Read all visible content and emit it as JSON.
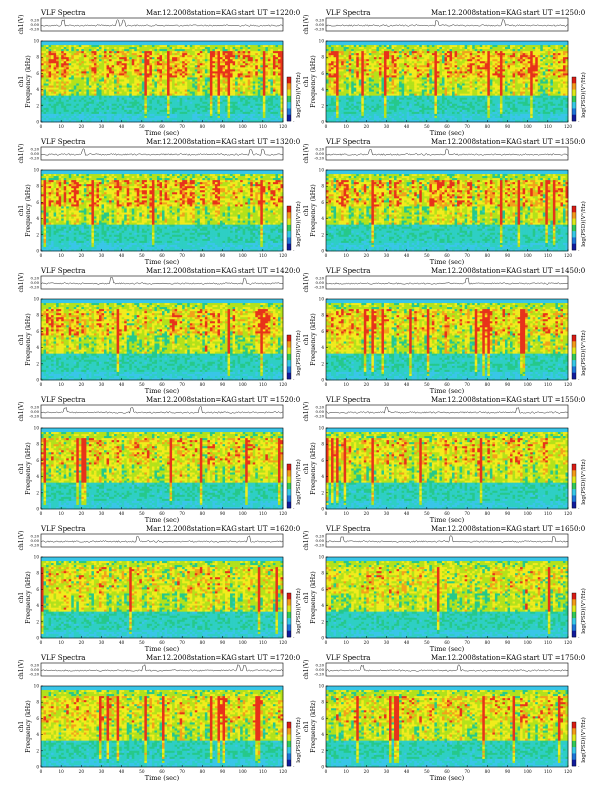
{
  "colors": {
    "background": "#0a9fe0",
    "low": "#39c6e8",
    "mid_low": "#26c98a",
    "mid": "#b4e21a",
    "mid_high": "#f2ec1c",
    "high": "#e8321a",
    "colorbar_stops": [
      "#111b9c",
      "#1e74d8",
      "#36c8e6",
      "#31c95a",
      "#dfe81a",
      "#f29a1a",
      "#d91b14"
    ]
  },
  "chart_data": [
    {
      "type": "heatmap",
      "title_left": "VLF Spectra",
      "date": "Mar.12.2008",
      "station": "station=KAG",
      "start": "start  UT  =1220:0",
      "xlabel": "Time  (sec)",
      "ylabel": "Frequency  (kHz)",
      "ch_label": "ch1",
      "ch_top_label": "ch1(V)",
      "colorbar_label": "log(PSD)(V²/Hz)",
      "xlim": [
        0,
        120
      ],
      "ylim": [
        0,
        10
      ],
      "x_ticks": [
        "0",
        "10",
        "20",
        "30",
        "40",
        "50",
        "60",
        "70",
        "80",
        "90",
        "100",
        "110",
        "120"
      ],
      "y_ticks": [
        "0",
        "2",
        "4",
        "6",
        "8",
        "10"
      ],
      "top_y_ticks": [
        "0.20",
        "0.00",
        "-0.20"
      ],
      "colorbar_ticks": [
        "-",
        "",
        "",
        "",
        "",
        "",
        ""
      ],
      "band_strength": 0.85,
      "spikes": [
        11,
        38,
        41
      ]
    },
    {
      "type": "heatmap",
      "title_left": "VLF Spectra",
      "date": "Mar.12.2008",
      "station": "station=KAG",
      "start": "start  UT  =1250:0",
      "xlabel": "Time  (sec)",
      "ylabel": "Frequency  (kHz)",
      "ch_label": "ch1",
      "ch_top_label": "ch1(V)",
      "colorbar_label": "log(PSD)(V²/Hz)",
      "xlim": [
        0,
        120
      ],
      "ylim": [
        0,
        10
      ],
      "x_ticks": [
        "0",
        "10",
        "20",
        "30",
        "40",
        "50",
        "60",
        "70",
        "80",
        "90",
        "100",
        "110",
        "120"
      ],
      "y_ticks": [
        "0",
        "2",
        "4",
        "6",
        "8",
        "10"
      ],
      "top_y_ticks": [
        "0.20",
        "0.00",
        "-0.20"
      ],
      "colorbar_ticks": [
        "-",
        "",
        "",
        "",
        "",
        "",
        ""
      ],
      "band_strength": 0.85,
      "spikes": [
        55,
        88
      ]
    },
    {
      "type": "heatmap",
      "title_left": "VLF Spectra",
      "date": "Mar.12.2008",
      "station": "station=KAG",
      "start": "start  UT  =1320:0",
      "xlabel": "Time  (sec)",
      "ylabel": "Frequency  (kHz)",
      "ch_label": "ch1",
      "ch_top_label": "ch1(V)",
      "colorbar_label": "log(PSD)(V²/Hz)",
      "xlim": [
        0,
        120
      ],
      "ylim": [
        0,
        10
      ],
      "x_ticks": [
        "0",
        "10",
        "20",
        "30",
        "40",
        "50",
        "60",
        "70",
        "80",
        "90",
        "100",
        "110",
        "120"
      ],
      "y_ticks": [
        "0",
        "2",
        "4",
        "6",
        "8",
        "10"
      ],
      "top_y_ticks": [
        "0.20",
        "0.00",
        "-0.20"
      ],
      "colorbar_ticks": [
        "-",
        "",
        "",
        "",
        "",
        "",
        ""
      ],
      "band_strength": 0.95,
      "spikes": [
        21,
        104,
        110
      ]
    },
    {
      "type": "heatmap",
      "title_left": "VLF Spectra",
      "date": "Mar.12.2008",
      "station": "station=KAG",
      "start": "start  UT  =1350:0",
      "xlabel": "Time  (sec)",
      "ylabel": "Frequency  (kHz)",
      "ch_label": "ch1",
      "ch_top_label": "ch1(V)",
      "colorbar_label": "log(PSD)(V²/Hz)",
      "xlim": [
        0,
        120
      ],
      "ylim": [
        0,
        10
      ],
      "x_ticks": [
        "0",
        "10",
        "20",
        "30",
        "40",
        "50",
        "60",
        "70",
        "80",
        "90",
        "100",
        "110",
        "120"
      ],
      "y_ticks": [
        "0",
        "2",
        "4",
        "6",
        "8",
        "10"
      ],
      "top_y_ticks": [
        "0.20",
        "0.00",
        "-0.20"
      ],
      "colorbar_ticks": [
        "-",
        "",
        "",
        "",
        "",
        "",
        ""
      ],
      "band_strength": 0.95,
      "spikes": [
        22,
        60
      ]
    },
    {
      "type": "heatmap",
      "title_left": "VLF Spectra",
      "date": "Mar.12.2008",
      "station": "station=KAG",
      "start": "start  UT  =1420:0",
      "xlabel": "Time  (sec)",
      "ylabel": "Frequency  (kHz)",
      "ch_label": "ch1",
      "ch_top_label": "ch1(V)",
      "colorbar_label": "log(PSD)(V²/Hz)",
      "xlim": [
        0,
        120
      ],
      "ylim": [
        0,
        10
      ],
      "x_ticks": [
        "0",
        "10",
        "20",
        "30",
        "40",
        "50",
        "60",
        "70",
        "80",
        "90",
        "100",
        "110",
        "120"
      ],
      "y_ticks": [
        "0",
        "2",
        "4",
        "6",
        "8",
        "10"
      ],
      "top_y_ticks": [
        "0.20",
        "0.00",
        "-0.20"
      ],
      "colorbar_ticks": [
        "-",
        "",
        "",
        "",
        "",
        "",
        ""
      ],
      "band_strength": 0.85,
      "spikes": [
        35,
        101
      ]
    },
    {
      "type": "heatmap",
      "title_left": "VLF Spectra",
      "date": "Mar.12.2008",
      "station": "station=KAG",
      "start": "start  UT  =1450:0",
      "xlabel": "Time  (sec)",
      "ylabel": "Frequency  (kHz)",
      "ch_label": "ch1",
      "ch_top_label": "ch1(V)",
      "colorbar_label": "log(PSD)(V²/Hz)",
      "xlim": [
        0,
        120
      ],
      "ylim": [
        0,
        10
      ],
      "x_ticks": [
        "0",
        "10",
        "20",
        "30",
        "40",
        "50",
        "60",
        "70",
        "80",
        "90",
        "100",
        "110",
        "120"
      ],
      "y_ticks": [
        "0",
        "2",
        "4",
        "6",
        "8",
        "10"
      ],
      "top_y_ticks": [
        "0.20",
        "0.00",
        "-0.20"
      ],
      "colorbar_ticks": [
        "-",
        "",
        "",
        "",
        "",
        "",
        ""
      ],
      "band_strength": 0.75,
      "spikes": [
        70
      ]
    },
    {
      "type": "heatmap",
      "title_left": "VLF Spectra",
      "date": "Mar.12.2008",
      "station": "station=KAG",
      "start": "start  UT  =1520:0",
      "xlabel": "Time  (sec)",
      "ylabel": "Frequency  (kHz)",
      "ch_label": "ch1",
      "ch_top_label": "ch1(V)",
      "colorbar_label": "log(PSD)(V²/Hz)",
      "xlim": [
        0,
        120
      ],
      "ylim": [
        0,
        10
      ],
      "x_ticks": [
        "0",
        "10",
        "20",
        "30",
        "40",
        "50",
        "60",
        "70",
        "80",
        "90",
        "100",
        "110",
        "120"
      ],
      "y_ticks": [
        "0",
        "2",
        "4",
        "6",
        "8",
        "10"
      ],
      "top_y_ticks": [
        "0.20",
        "0.00",
        "-0.20"
      ],
      "colorbar_ticks": [
        "-",
        "",
        "",
        "",
        "",
        "",
        ""
      ],
      "band_strength": 0.6,
      "spikes": [
        12,
        45,
        79
      ]
    },
    {
      "type": "heatmap",
      "title_left": "VLF Spectra",
      "date": "Mar.12.2008",
      "station": "station=KAG",
      "start": "start  UT  =1550:0",
      "xlabel": "Time  (sec)",
      "ylabel": "Frequency  (kHz)",
      "ch_label": "ch1",
      "ch_top_label": "ch1(V)",
      "colorbar_label": "log(PSD)(V²/Hz)",
      "xlim": [
        0,
        120
      ],
      "ylim": [
        0,
        10
      ],
      "x_ticks": [
        "0",
        "10",
        "20",
        "30",
        "40",
        "50",
        "60",
        "70",
        "80",
        "90",
        "100",
        "110",
        "120"
      ],
      "y_ticks": [
        "0",
        "2",
        "4",
        "6",
        "8",
        "10"
      ],
      "top_y_ticks": [
        "0.20",
        "0.00",
        "-0.20"
      ],
      "colorbar_ticks": [
        "-",
        "",
        "",
        "",
        "",
        "",
        ""
      ],
      "band_strength": 0.6,
      "spikes": [
        30,
        95
      ]
    },
    {
      "type": "heatmap",
      "title_left": "VLF Spectra",
      "date": "Mar.12.2008",
      "station": "station=KAG",
      "start": "start  UT  =1620:0",
      "xlabel": "Time  (sec)",
      "ylabel": "Frequency  (kHz)",
      "ch_label": "ch1",
      "ch_top_label": "ch1(V)",
      "colorbar_label": "log(PSD)(V²/Hz)",
      "xlim": [
        0,
        120
      ],
      "ylim": [
        0,
        10
      ],
      "x_ticks": [
        "0",
        "10",
        "20",
        "30",
        "40",
        "50",
        "60",
        "70",
        "80",
        "90",
        "100",
        "110",
        "120"
      ],
      "y_ticks": [
        "0",
        "2",
        "4",
        "6",
        "8",
        "10"
      ],
      "top_y_ticks": [
        "0.20",
        "0.00",
        "-0.20"
      ],
      "colorbar_ticks": [
        "-",
        "",
        "",
        "",
        "",
        "",
        ""
      ],
      "band_strength": 0.5,
      "spikes": [
        48,
        103
      ]
    },
    {
      "type": "heatmap",
      "title_left": "VLF Spectra",
      "date": "Mar.12.2008",
      "station": "station=KAG",
      "start": "start  UT  =1650:0",
      "xlabel": "Time  (sec)",
      "ylabel": "Frequency  (kHz)",
      "ch_label": "ch1",
      "ch_top_label": "ch1(V)",
      "colorbar_label": "log(PSD)(V²/Hz)",
      "xlim": [
        0,
        120
      ],
      "ylim": [
        0,
        10
      ],
      "x_ticks": [
        "0",
        "10",
        "20",
        "30",
        "40",
        "50",
        "60",
        "70",
        "80",
        "90",
        "100",
        "110",
        "120"
      ],
      "y_ticks": [
        "0",
        "2",
        "4",
        "6",
        "8",
        "10"
      ],
      "top_y_ticks": [
        "0.20",
        "0.00",
        "-0.20"
      ],
      "colorbar_ticks": [
        "-",
        "",
        "",
        "",
        "",
        "",
        ""
      ],
      "band_strength": 0.5,
      "spikes": [
        8,
        62,
        113
      ]
    },
    {
      "type": "heatmap",
      "title_left": "VLF Spectra",
      "date": "Mar.12.2008",
      "station": "station=KAG",
      "start": "start  UT  =1720:0",
      "xlabel": "Time  (sec)",
      "ylabel": "Frequency  (kHz)",
      "ch_label": "ch1",
      "ch_top_label": "ch1(V)",
      "colorbar_label": "log(PSD)(V²/Hz)",
      "xlim": [
        0,
        120
      ],
      "ylim": [
        0,
        10
      ],
      "x_ticks": [
        "0",
        "10",
        "20",
        "30",
        "40",
        "50",
        "60",
        "70",
        "80",
        "90",
        "100",
        "110",
        "120"
      ],
      "y_ticks": [
        "0",
        "2",
        "4",
        "6",
        "8",
        "10"
      ],
      "top_y_ticks": [
        "0.20",
        "0.00",
        "-0.20"
      ],
      "colorbar_ticks": [
        "-",
        "",
        "",
        "",
        "",
        "",
        ""
      ],
      "band_strength": 0.55,
      "spikes": [
        51,
        98,
        101
      ]
    },
    {
      "type": "heatmap",
      "title_left": "VLF Spectra",
      "date": "Mar.12.2008",
      "station": "station=KAG",
      "start": "start  UT  =1750:0",
      "xlabel": "Time  (sec)",
      "ylabel": "Frequency  (kHz)",
      "ch_label": "ch1",
      "ch_top_label": "ch1(V)",
      "colorbar_label": "log(PSD)(V²/Hz)",
      "xlim": [
        0,
        120
      ],
      "ylim": [
        0,
        10
      ],
      "x_ticks": [
        "0",
        "10",
        "20",
        "30",
        "40",
        "50",
        "60",
        "70",
        "80",
        "90",
        "100",
        "110",
        "120"
      ],
      "y_ticks": [
        "0",
        "2",
        "4",
        "6",
        "8",
        "10"
      ],
      "top_y_ticks": [
        "0.20",
        "0.00",
        "-0.20"
      ],
      "colorbar_ticks": [
        "-",
        "",
        "",
        "",
        "",
        "",
        ""
      ],
      "band_strength": 0.55,
      "spikes": [
        18,
        66
      ]
    }
  ]
}
